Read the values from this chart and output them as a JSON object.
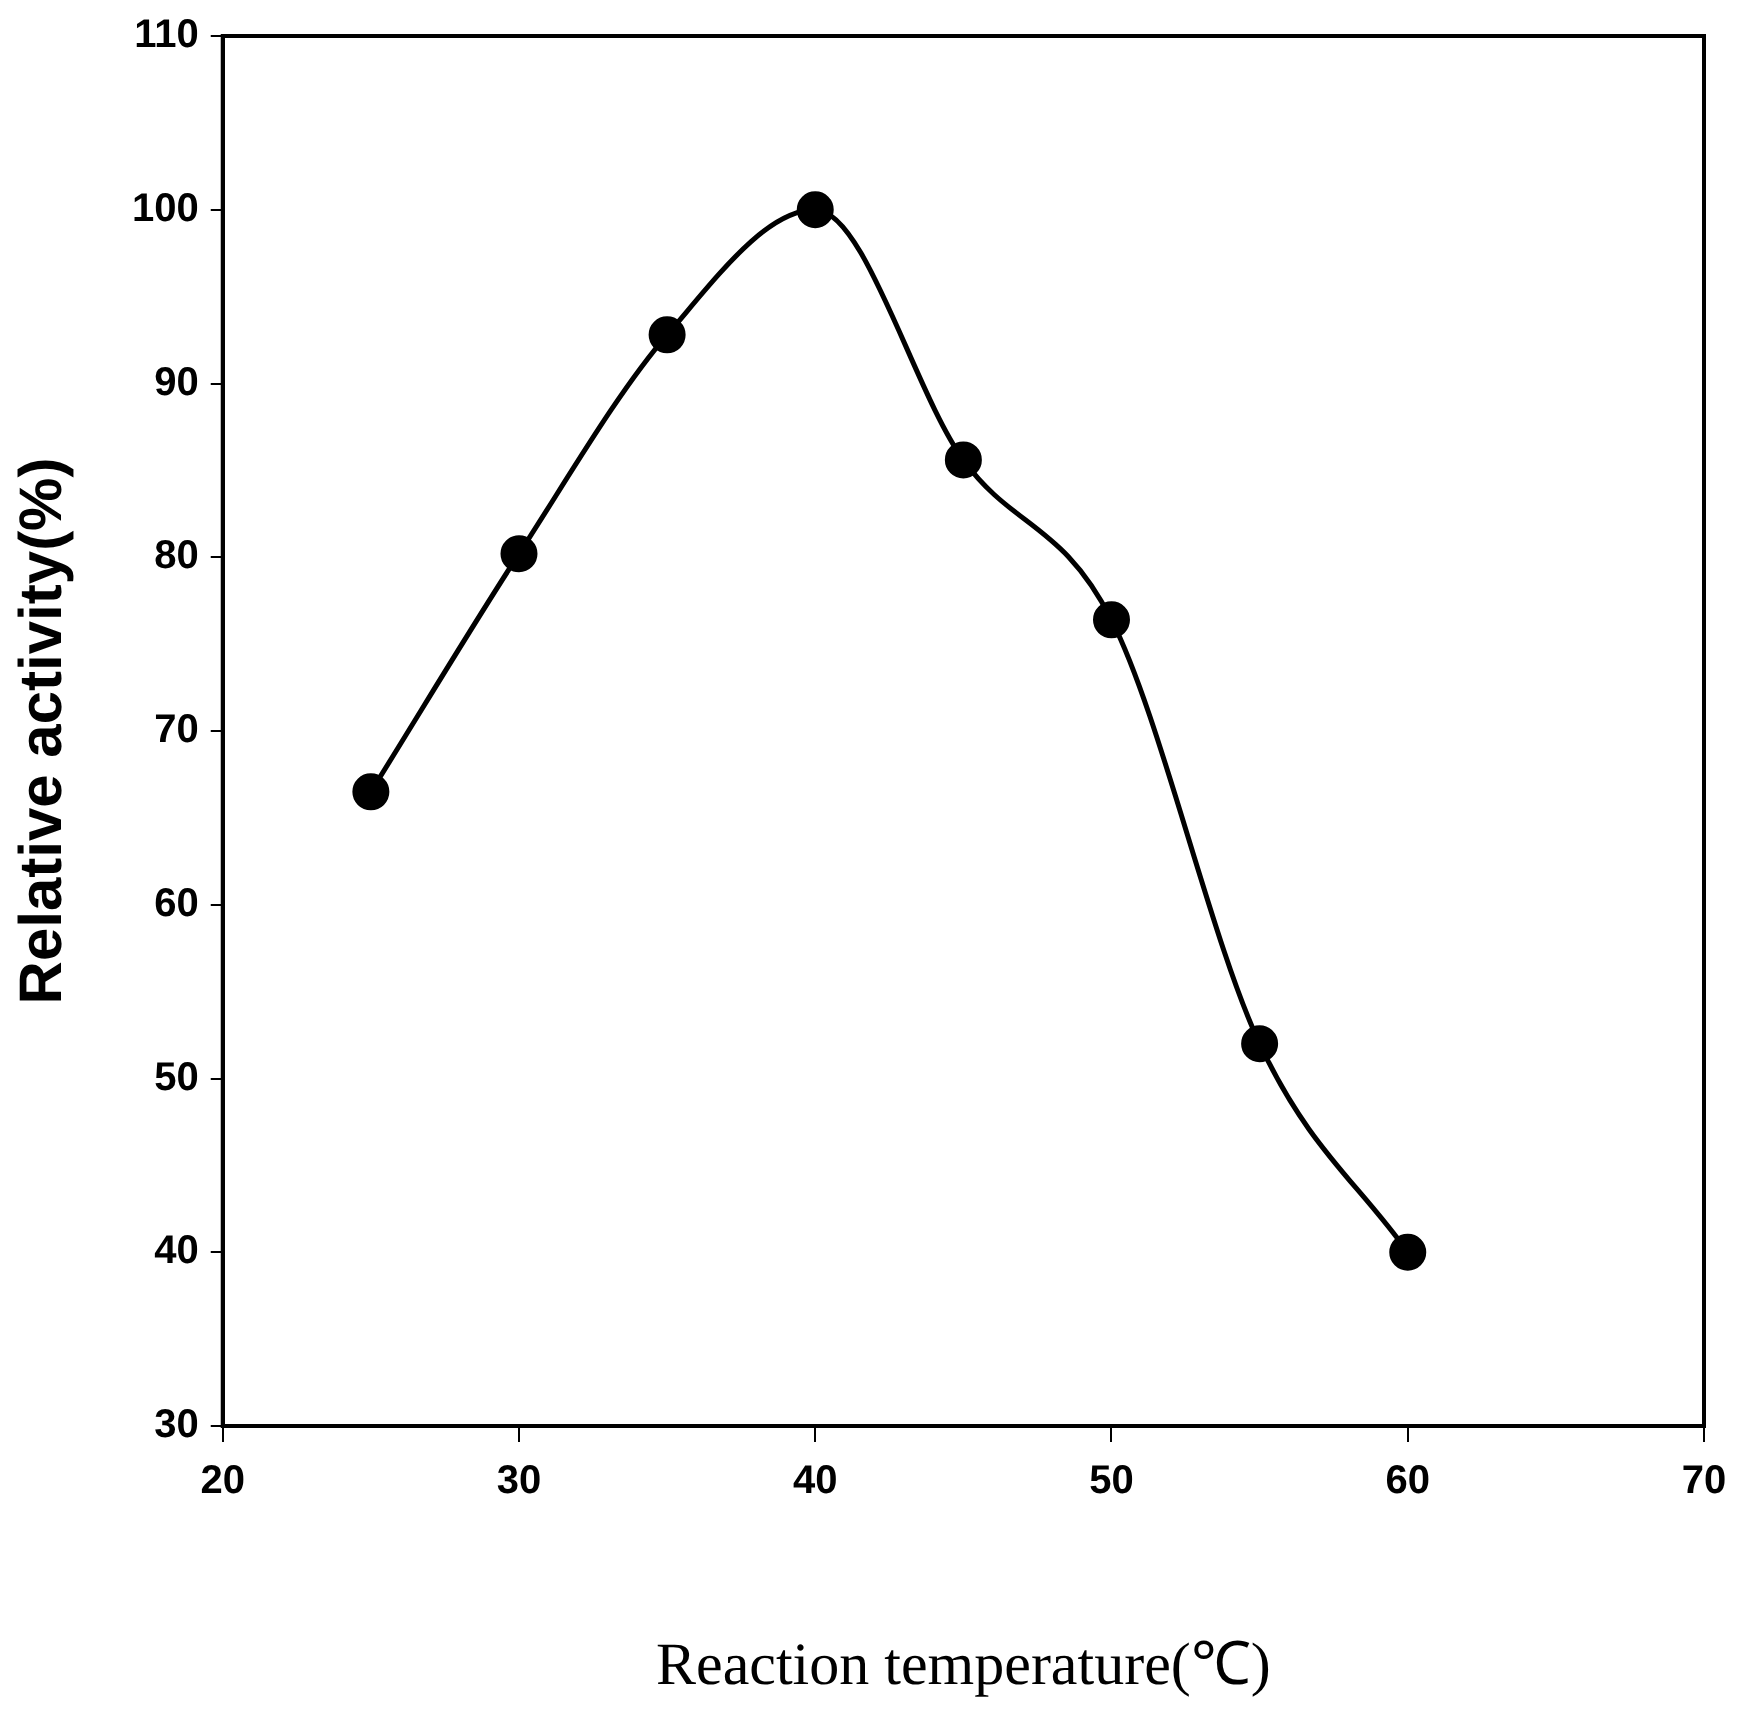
{
  "chart_data": {
    "type": "line",
    "xlabel": "Reaction temperature(℃)",
    "ylabel": "Relative activity(%)",
    "x": [
      25,
      30,
      35,
      40,
      45,
      50,
      55,
      60
    ],
    "series": [
      {
        "color": "#000000",
        "values": [
          66.5,
          80.2,
          92.8,
          100,
          85.6,
          76.4,
          52,
          40
        ]
      }
    ],
    "xlim": [
      20,
      70
    ],
    "xticks": [
      20,
      30,
      40,
      50,
      60,
      70
    ],
    "ylim": [
      30,
      110
    ],
    "yticks": [
      30,
      40,
      50,
      60,
      70,
      80,
      90,
      100,
      110
    ],
    "grid": false,
    "legend": false,
    "marker": "circle",
    "line_style": "solid"
  }
}
